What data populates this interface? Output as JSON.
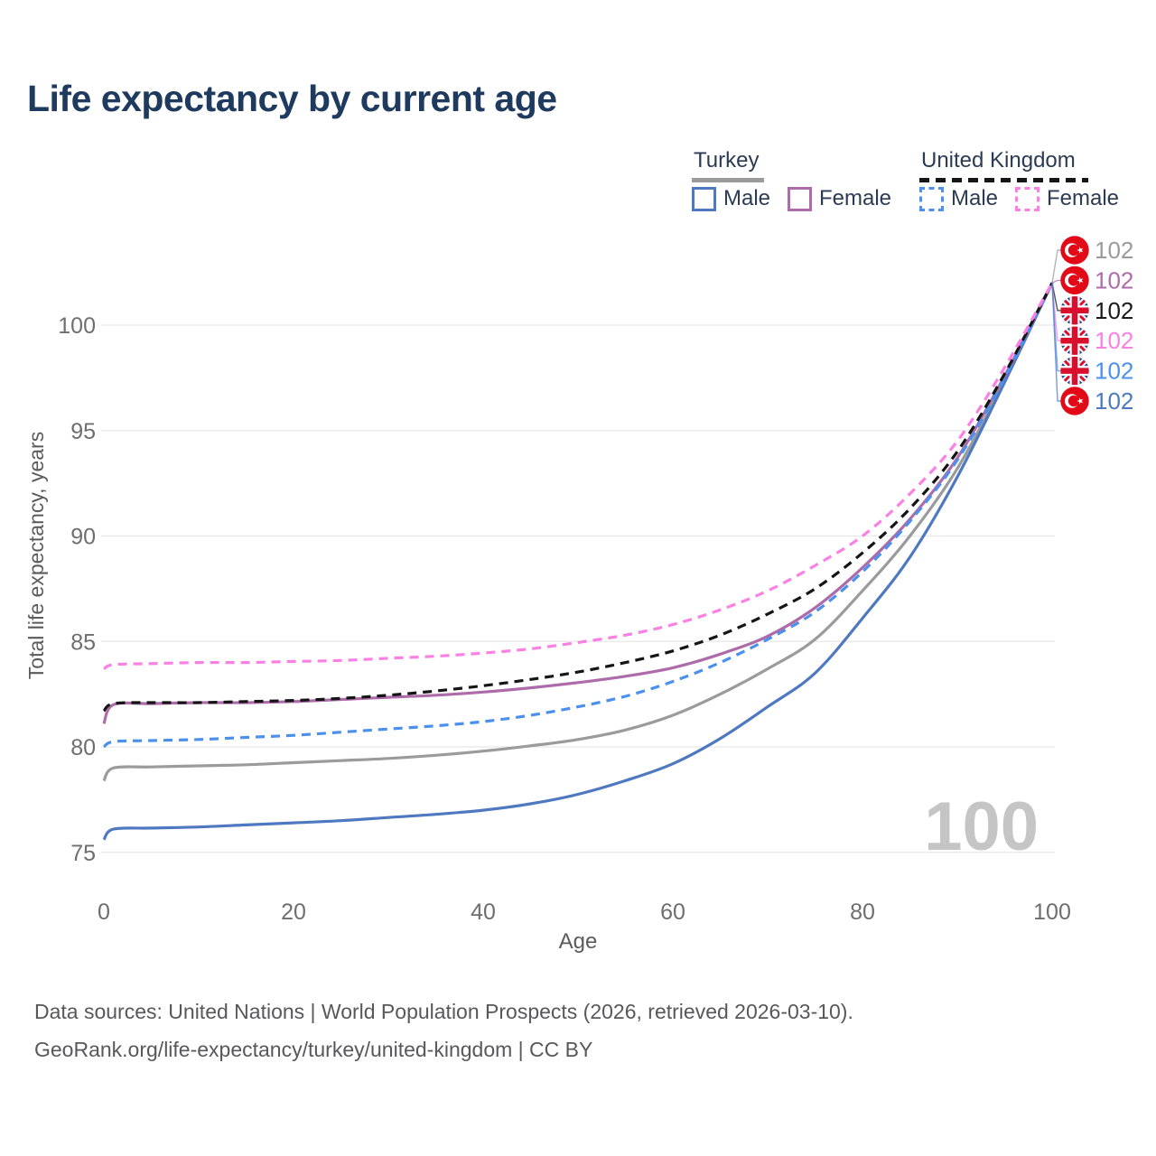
{
  "title": "Life expectancy by current age",
  "legend": {
    "groups": [
      {
        "label": "Turkey",
        "line_style": "solid",
        "color": "#9b9b9b",
        "items": [
          {
            "label": "Male",
            "color": "#4e79c0"
          },
          {
            "label": "Female",
            "color": "#ad6ca9"
          }
        ]
      },
      {
        "label": "United Kingdom",
        "line_style": "dashed",
        "color": "#151515",
        "items": [
          {
            "label": "Male",
            "color": "#4a90ec"
          },
          {
            "label": "Female",
            "color": "#fb80e3"
          }
        ]
      }
    ]
  },
  "chart_data": {
    "type": "line",
    "title": "Life expectancy by current age",
    "xlabel": "Age",
    "ylabel": "Total life expectancy, years",
    "xlim": [
      0,
      100
    ],
    "ylim": [
      74.5,
      103
    ],
    "x_ticks": [
      0,
      20,
      40,
      60,
      80,
      100
    ],
    "y_ticks": [
      75,
      80,
      85,
      90,
      95,
      100
    ],
    "grid": "horizontal",
    "legend_position": "top-right",
    "watermark": "100",
    "x": [
      0,
      1,
      5,
      10,
      15,
      20,
      25,
      30,
      35,
      40,
      45,
      50,
      55,
      60,
      65,
      70,
      75,
      80,
      85,
      90,
      95,
      100
    ],
    "series": [
      {
        "name": "Turkey",
        "country": "Turkey",
        "sex": "Total",
        "color": "#9b9b9b",
        "dashed": false,
        "end_value": 102,
        "values": [
          78.4,
          79.0,
          79.05,
          79.1,
          79.15,
          79.25,
          79.35,
          79.45,
          79.6,
          79.8,
          80.05,
          80.35,
          80.8,
          81.5,
          82.5,
          83.7,
          85.1,
          87.4,
          90.0,
          93.2,
          97.4,
          102
        ]
      },
      {
        "name": "Turkey Male",
        "country": "Turkey",
        "sex": "Male",
        "color": "#4e79c0",
        "dashed": false,
        "end_value": 102,
        "values": [
          75.6,
          76.1,
          76.15,
          76.2,
          76.3,
          76.4,
          76.5,
          76.65,
          76.8,
          77.0,
          77.3,
          77.75,
          78.4,
          79.2,
          80.4,
          81.9,
          83.5,
          86.1,
          89.0,
          92.8,
          97.3,
          102
        ]
      },
      {
        "name": "Turkey Female",
        "country": "Turkey",
        "sex": "Female",
        "color": "#ad6ca9",
        "dashed": false,
        "end_value": 102,
        "values": [
          81.1,
          82.0,
          82.05,
          82.1,
          82.1,
          82.15,
          82.25,
          82.35,
          82.45,
          82.6,
          82.8,
          83.05,
          83.35,
          83.75,
          84.4,
          85.25,
          86.6,
          88.5,
          90.8,
          93.7,
          97.6,
          102
        ]
      },
      {
        "name": "United Kingdom Male",
        "country": "United Kingdom",
        "sex": "Male",
        "color": "#4a90ec",
        "dashed": true,
        "end_value": 102,
        "values": [
          80.0,
          80.25,
          80.3,
          80.35,
          80.45,
          80.55,
          80.7,
          80.85,
          81.0,
          81.2,
          81.5,
          81.9,
          82.4,
          83.1,
          84.0,
          85.1,
          86.4,
          88.3,
          90.7,
          93.6,
          97.5,
          102
        ]
      },
      {
        "name": "United Kingdom",
        "country": "United Kingdom",
        "sex": "Total",
        "color": "#151515",
        "dashed": true,
        "end_value": 102,
        "values": [
          81.7,
          82.05,
          82.1,
          82.1,
          82.15,
          82.2,
          82.3,
          82.45,
          82.65,
          82.9,
          83.2,
          83.55,
          84.0,
          84.55,
          85.3,
          86.3,
          87.5,
          89.2,
          91.3,
          94.0,
          97.7,
          102
        ]
      },
      {
        "name": "United Kingdom Female",
        "country": "United Kingdom",
        "sex": "Female",
        "color": "#fb80e3",
        "dashed": true,
        "end_value": 102,
        "values": [
          83.7,
          83.9,
          83.95,
          84.0,
          84.0,
          84.05,
          84.1,
          84.2,
          84.3,
          84.45,
          84.65,
          84.95,
          85.3,
          85.8,
          86.5,
          87.4,
          88.6,
          90.0,
          92.0,
          94.5,
          98.0,
          102
        ]
      }
    ]
  },
  "end_labels": [
    {
      "flag": "turkey",
      "series": "Turkey",
      "value": "102",
      "color": "#9b9b9b"
    },
    {
      "flag": "turkey",
      "series": "Turkey Female",
      "value": "102",
      "color": "#ad6ca9"
    },
    {
      "flag": "uk",
      "series": "United Kingdom",
      "value": "102",
      "color": "#1a1a1a"
    },
    {
      "flag": "uk",
      "series": "United Kingdom Female",
      "value": "102",
      "color": "#fb80e3"
    },
    {
      "flag": "uk",
      "series": "United Kingdom Male",
      "value": "102",
      "color": "#4a90ec"
    },
    {
      "flag": "turkey",
      "series": "Turkey Male",
      "value": "102",
      "color": "#4e79c0"
    }
  ],
  "footer": {
    "line1": "Data sources: United Nations | World Population Prospects (2026, retrieved 2026-03-10).",
    "line2": "GeoRank.org/life-expectancy/turkey/united-kingdom | CC BY"
  }
}
